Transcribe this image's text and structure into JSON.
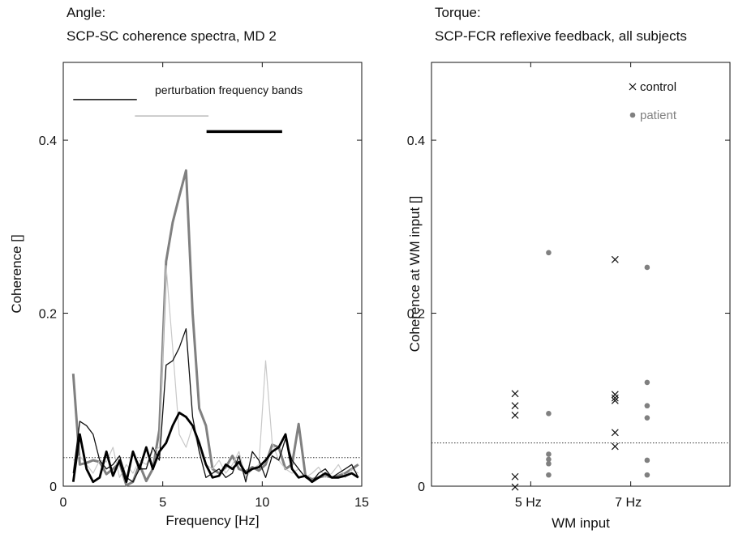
{
  "chart_data": [
    {
      "type": "line",
      "title_line1": "Angle:",
      "title_line2": "SCP-SC coherence spectra, MD 2",
      "xlabel": "Frequency [Hz]",
      "ylabel": "Coherence []",
      "xlim": [
        0,
        15
      ],
      "ylim": [
        0,
        0.49
      ],
      "xticks": [
        0,
        5,
        10,
        15
      ],
      "xtick_labels": [
        "0",
        "5",
        "10",
        "15"
      ],
      "yticks": [
        0,
        0.2,
        0.4
      ],
      "ytick_labels": [
        "0",
        "0.2",
        "0.4"
      ],
      "grid": false,
      "reference_line": {
        "y": 0.033,
        "style": "dotted"
      },
      "band_legend": {
        "label": "perturbation frequency bands",
        "bands": [
          {
            "x": [
              0.5,
              3.7
            ],
            "y": 0.447,
            "color": "#111111",
            "width": 1.5
          },
          {
            "x": [
              3.6,
              7.3
            ],
            "y": 0.428,
            "color": "#bbbbbb",
            "width": 1.5
          },
          {
            "x": [
              7.2,
              11.0
            ],
            "y": 0.41,
            "color": "#000000",
            "width": 3.5
          }
        ]
      },
      "x": [
        0.5,
        0.83,
        1.17,
        1.5,
        1.83,
        2.17,
        2.5,
        2.83,
        3.17,
        3.5,
        3.83,
        4.17,
        4.5,
        4.83,
        5.17,
        5.5,
        5.83,
        6.17,
        6.5,
        6.83,
        7.17,
        7.5,
        7.83,
        8.17,
        8.5,
        8.83,
        9.17,
        9.5,
        9.83,
        10.17,
        10.5,
        10.83,
        11.17,
        11.5,
        11.83,
        12.17,
        12.5,
        12.83,
        13.17,
        13.5,
        13.83,
        14.17,
        14.5,
        14.83
      ],
      "series": [
        {
          "color": "#808080",
          "width": 3,
          "values": [
            0.13,
            0.025,
            0.027,
            0.03,
            0.028,
            0.014,
            0.02,
            0.027,
            0.001,
            0.005,
            0.025,
            0.006,
            0.02,
            0.065,
            0.26,
            0.305,
            0.335,
            0.365,
            0.2,
            0.09,
            0.07,
            0.02,
            0.015,
            0.022,
            0.035,
            0.02,
            0.017,
            0.022,
            0.018,
            0.025,
            0.048,
            0.045,
            0.02,
            0.025,
            0.072,
            0.012,
            0.008,
            0.01,
            0.012,
            0.01,
            0.012,
            0.015,
            0.02,
            0.025
          ]
        },
        {
          "color": "#c8c8c8",
          "width": 1.2,
          "values": [
            0.03,
            0.035,
            0.025,
            0.015,
            0.03,
            0.028,
            0.045,
            0.01,
            0.025,
            0.015,
            0.03,
            0.025,
            0.04,
            0.045,
            0.255,
            0.16,
            0.06,
            0.045,
            0.07,
            0.04,
            0.025,
            0.02,
            0.03,
            0.015,
            0.025,
            0.04,
            0.01,
            0.02,
            0.025,
            0.145,
            0.05,
            0.03,
            0.02,
            0.015,
            0.02,
            0.01,
            0.015,
            0.022,
            0.01,
            0.015,
            0.025,
            0.01,
            0.02,
            0.015
          ]
        },
        {
          "color": "#111111",
          "width": 1.3,
          "values": [
            0.015,
            0.075,
            0.07,
            0.06,
            0.03,
            0.02,
            0.025,
            0.035,
            0.01,
            0.005,
            0.02,
            0.02,
            0.045,
            0.03,
            0.14,
            0.145,
            0.16,
            0.182,
            0.08,
            0.04,
            0.01,
            0.015,
            0.02,
            0.01,
            0.015,
            0.035,
            0.005,
            0.04,
            0.03,
            0.01,
            0.035,
            0.03,
            0.055,
            0.03,
            0.02,
            0.01,
            0.005,
            0.015,
            0.02,
            0.01,
            0.015,
            0.02,
            0.025,
            0.01
          ]
        },
        {
          "color": "#000000",
          "width": 2.8,
          "values": [
            0.005,
            0.06,
            0.02,
            0.005,
            0.01,
            0.04,
            0.012,
            0.03,
            0.005,
            0.04,
            0.02,
            0.045,
            0.02,
            0.04,
            0.05,
            0.07,
            0.085,
            0.08,
            0.07,
            0.05,
            0.025,
            0.01,
            0.012,
            0.025,
            0.02,
            0.028,
            0.015,
            0.02,
            0.022,
            0.03,
            0.04,
            0.045,
            0.06,
            0.02,
            0.01,
            0.012,
            0.005,
            0.01,
            0.015,
            0.01,
            0.01,
            0.012,
            0.015,
            0.01
          ]
        }
      ]
    },
    {
      "type": "scatter",
      "title_line1": "Torque:",
      "title_line2": "SCP-FCR reflexive feedback, all subjects",
      "xlabel": "WM input",
      "ylabel": "Coherence at WM input []",
      "xlim": [
        0,
        4
      ],
      "ylim": [
        0,
        0.49
      ],
      "xticks": [
        1.33,
        2.67
      ],
      "xtick_labels": [
        "5 Hz",
        "7 Hz"
      ],
      "yticks": [
        0,
        0.2,
        0.4
      ],
      "ytick_labels": [
        "0",
        "0.2",
        "0.4"
      ],
      "grid": false,
      "legend_position": "top-right",
      "reference_line": {
        "y": 0.05,
        "style": "dotted"
      },
      "series": [
        {
          "name": "control",
          "marker": "x",
          "color": "#111111",
          "points": [
            [
              1.12,
              0.107
            ],
            [
              1.12,
              0.093
            ],
            [
              1.12,
              0.082
            ],
            [
              1.12,
              0.011
            ],
            [
              1.12,
              -0.001
            ],
            [
              2.46,
              0.262
            ],
            [
              2.46,
              0.106
            ],
            [
              2.46,
              0.102
            ],
            [
              2.46,
              0.099
            ],
            [
              2.46,
              0.062
            ],
            [
              2.46,
              0.046
            ]
          ]
        },
        {
          "name": "patient",
          "marker": "dot",
          "color": "#808080",
          "points": [
            [
              1.57,
              0.27
            ],
            [
              1.57,
              0.084
            ],
            [
              1.57,
              0.037
            ],
            [
              1.57,
              0.031
            ],
            [
              1.57,
              0.026
            ],
            [
              1.57,
              0.013
            ],
            [
              2.89,
              0.253
            ],
            [
              2.89,
              0.12
            ],
            [
              2.89,
              0.093
            ],
            [
              2.89,
              0.079
            ],
            [
              2.89,
              0.03
            ],
            [
              2.89,
              0.013
            ]
          ]
        }
      ]
    }
  ]
}
